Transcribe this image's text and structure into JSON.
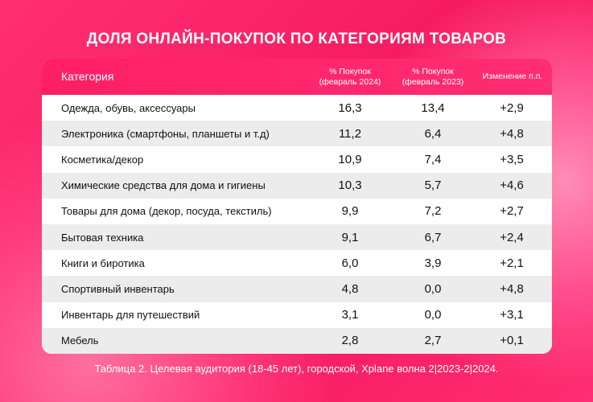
{
  "header": {
    "title": "ДОЛЯ ОНЛАЙН-ПОКУПОК ПО КАТЕГОРИЯМ ТОВАРОВ"
  },
  "table": {
    "columns": [
      "Категория",
      "% Покупок (февраль 2024)",
      "% Покупок (февраль 2023)",
      "Изменение п.п."
    ],
    "rows": [
      [
        "Одежда, обувь, аксессуары",
        "16,3",
        "13,4",
        "+2,9"
      ],
      [
        "Электроника (смартфоны, планшеты и т.д)",
        "11,2",
        "6,4",
        "+4,8"
      ],
      [
        "Косметика/декор",
        "10,9",
        "7,4",
        "+3,5"
      ],
      [
        "Химические средства для дома и гигиены",
        "10,3",
        "5,7",
        "+4,6"
      ],
      [
        "Товары для дома (декор, посуда, текстиль)",
        "9,9",
        "7,2",
        "+2,7"
      ],
      [
        "Бытовая техника",
        "9,1",
        "6,7",
        "+2,4"
      ],
      [
        "Книги и биротика",
        "6,0",
        "3,9",
        "+2,1"
      ],
      [
        "Спортивный инвентарь",
        "4,8",
        "0,0",
        "+4,8"
      ],
      [
        "Инвентарь для путешествий",
        "3,1",
        "0,0",
        "+3,1"
      ],
      [
        "Мебель",
        "2,8",
        "2,7",
        "+0,1"
      ]
    ]
  },
  "footer": {
    "caption": "Таблица 2. Целевая аудитория (18-45 лет), городской, Xplane волна 2|2023-2|2024."
  }
}
